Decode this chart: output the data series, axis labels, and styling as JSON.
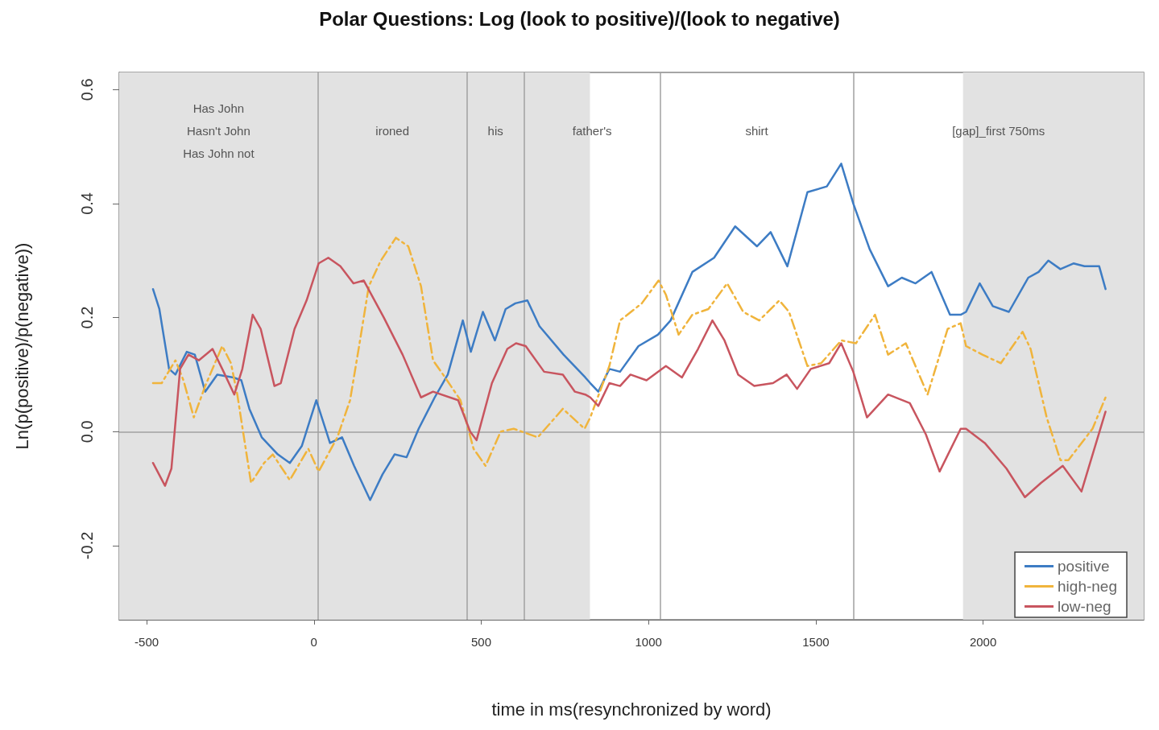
{
  "chart_data": {
    "type": "line",
    "title": "Polar Questions: Log (look to positive)/(look to negative)",
    "xlabel": "time in ms(resynchronized by word)",
    "ylabel": "Ln(p(positive)/p(negative))",
    "xlim": [
      -582,
      2480
    ],
    "xticks": [
      -500,
      0,
      500,
      1000,
      1500,
      2000
    ],
    "ylim": [
      -0.33,
      0.63
    ],
    "yticks": [
      {
        "value": -0.2,
        "label": "-0.2"
      },
      {
        "value": 0,
        "label": "0.0"
      },
      {
        "value": 0.2,
        "label": "0.2"
      },
      {
        "value": 0.4,
        "label": "0.4"
      },
      {
        "value": 0.6,
        "label": "0.6"
      }
    ],
    "grid": false,
    "legend": "bottom right",
    "marker": "none",
    "series": [
      {
        "name": "positive",
        "color": "#3d7cc4",
        "line_style": "solid",
        "x": [
          -481,
          -462,
          -433,
          -414,
          -380,
          -356,
          -325,
          -289,
          -241,
          -217,
          -193,
          -156,
          -108,
          -72,
          -36,
          7,
          48,
          84,
          120,
          168,
          205,
          241,
          277,
          313,
          361,
          400,
          445,
          469,
          505,
          541,
          573,
          602,
          638,
          674,
          746,
          811,
          826,
          850,
          883,
          915,
          970,
          1028,
          1066,
          1131,
          1196,
          1259,
          1324,
          1365,
          1415,
          1475,
          1533,
          1576,
          1612,
          1661,
          1716,
          1757,
          1798,
          1846,
          1901,
          1933,
          1949,
          1990,
          2029,
          2077,
          2135,
          2166,
          2195,
          2231,
          2270,
          2303,
          2347,
          2366
        ],
        "values": [
          0.25,
          0.215,
          0.11,
          0.1,
          0.14,
          0.135,
          0.07,
          0.1,
          0.095,
          0.09,
          0.04,
          -0.01,
          -0.04,
          -0.055,
          -0.025,
          0.055,
          -0.02,
          -0.01,
          -0.06,
          -0.12,
          -0.075,
          -0.04,
          -0.045,
          0.005,
          0.06,
          0.1,
          0.195,
          0.14,
          0.21,
          0.16,
          0.215,
          0.225,
          0.23,
          0.185,
          0.135,
          0.095,
          0.085,
          0.07,
          0.11,
          0.105,
          0.15,
          0.17,
          0.195,
          0.28,
          0.305,
          0.36,
          0.325,
          0.35,
          0.29,
          0.42,
          0.43,
          0.47,
          0.4,
          0.32,
          0.255,
          0.27,
          0.26,
          0.28,
          0.205,
          0.205,
          0.21,
          0.26,
          0.22,
          0.21,
          0.27,
          0.28,
          0.3,
          0.285,
          0.295,
          0.29,
          0.29,
          0.25
        ]
      },
      {
        "name": "high-neg",
        "color": "#f0b43c",
        "line_style": "dashed",
        "x": [
          -481,
          -455,
          -414,
          -390,
          -359,
          -325,
          -274,
          -248,
          -229,
          -188,
          -149,
          -123,
          -72,
          -17,
          14,
          70,
          108,
          135,
          164,
          200,
          245,
          282,
          320,
          356,
          392,
          438,
          477,
          513,
          558,
          597,
          669,
          744,
          809,
          826,
          883,
          915,
          980,
          1030,
          1052,
          1090,
          1131,
          1179,
          1235,
          1283,
          1331,
          1391,
          1420,
          1475,
          1516,
          1576,
          1620,
          1677,
          1716,
          1769,
          1834,
          1894,
          1933,
          1949,
          1998,
          2053,
          2118,
          2142,
          2190,
          2231,
          2255,
          2327,
          2366
        ],
        "values": [
          0.085,
          0.085,
          0.125,
          0.09,
          0.025,
          0.08,
          0.15,
          0.12,
          0.065,
          -0.09,
          -0.055,
          -0.04,
          -0.085,
          -0.03,
          -0.07,
          -0.01,
          0.055,
          0.15,
          0.255,
          0.3,
          0.34,
          0.325,
          0.255,
          0.125,
          0.095,
          0.055,
          -0.03,
          -0.06,
          0.0,
          0.005,
          -0.01,
          0.04,
          0.005,
          0.025,
          0.115,
          0.195,
          0.225,
          0.265,
          0.24,
          0.17,
          0.205,
          0.215,
          0.26,
          0.21,
          0.195,
          0.23,
          0.21,
          0.115,
          0.12,
          0.16,
          0.155,
          0.205,
          0.135,
          0.155,
          0.065,
          0.18,
          0.19,
          0.15,
          0.135,
          0.12,
          0.175,
          0.145,
          0.025,
          -0.05,
          -0.05,
          0.005,
          0.06
        ]
      },
      {
        "name": "low-neg",
        "color": "#c8555f",
        "line_style": "solid",
        "x": [
          -481,
          -445,
          -426,
          -400,
          -375,
          -344,
          -303,
          -270,
          -238,
          -214,
          -183,
          -159,
          -118,
          -99,
          -58,
          -22,
          14,
          43,
          79,
          118,
          149,
          209,
          265,
          320,
          356,
          431,
          467,
          486,
          532,
          578,
          604,
          633,
          688,
          744,
          780,
          811,
          826,
          850,
          883,
          915,
          946,
          994,
          1052,
          1100,
          1148,
          1191,
          1227,
          1268,
          1316,
          1372,
          1413,
          1444,
          1485,
          1540,
          1576,
          1612,
          1653,
          1716,
          1781,
          1829,
          1870,
          1933,
          1949,
          2005,
          2070,
          2125,
          2173,
          2238,
          2294,
          2366
        ],
        "values": [
          -0.055,
          -0.095,
          -0.065,
          0.11,
          0.135,
          0.125,
          0.145,
          0.105,
          0.065,
          0.11,
          0.205,
          0.18,
          0.08,
          0.085,
          0.18,
          0.23,
          0.295,
          0.305,
          0.29,
          0.26,
          0.265,
          0.2,
          0.135,
          0.06,
          0.07,
          0.055,
          0.0,
          -0.015,
          0.085,
          0.145,
          0.155,
          0.15,
          0.105,
          0.1,
          0.07,
          0.065,
          0.06,
          0.045,
          0.085,
          0.08,
          0.1,
          0.09,
          0.115,
          0.095,
          0.145,
          0.195,
          0.16,
          0.1,
          0.08,
          0.085,
          0.1,
          0.075,
          0.11,
          0.12,
          0.155,
          0.105,
          0.025,
          0.065,
          0.05,
          -0.005,
          -0.07,
          0.005,
          0.005,
          -0.02,
          -0.065,
          -0.115,
          -0.09,
          -0.06,
          -0.105,
          0.035
        ]
      }
    ],
    "ref_lines": [
      {
        "axis": "y",
        "value": 0,
        "color": "#a0a0a0"
      },
      {
        "axis": "x",
        "value": 12,
        "color": "#a0a0a0"
      },
      {
        "axis": "x",
        "value": 457,
        "color": "#a0a0a0"
      },
      {
        "axis": "x",
        "value": 628,
        "color": "#a0a0a0"
      },
      {
        "axis": "x",
        "value": 1035,
        "color": "#a0a0a0"
      },
      {
        "axis": "x",
        "value": 1612,
        "color": "#a0a0a0"
      }
    ],
    "bands": [
      {
        "axis": "x",
        "from": -582,
        "to": 825,
        "color": "#e2e2e2"
      },
      {
        "axis": "x",
        "from": 1940,
        "to": 2480,
        "color": "#e2e2e2"
      }
    ],
    "annotations": [
      "Has John\nHasn't John\nHas John not",
      "ironed",
      "his",
      "father's",
      "shirt",
      "[gap]_first 750ms"
    ]
  }
}
